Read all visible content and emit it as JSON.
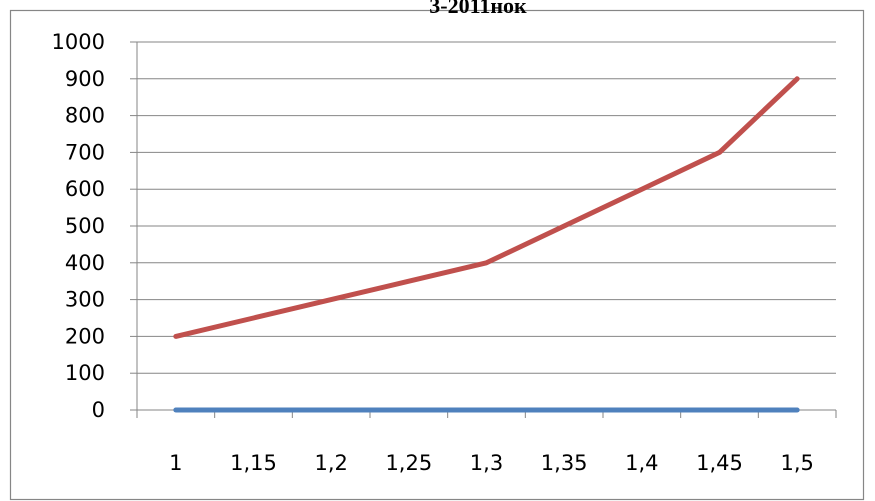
{
  "chart_data": {
    "type": "line",
    "title": "3-2011нок",
    "xlabel": "",
    "ylabel": "",
    "x": [
      "1",
      "1,15",
      "1,2",
      "1,25",
      "1,3",
      "1,35",
      "1,4",
      "1,45",
      "1,5"
    ],
    "ylim": [
      0,
      1000
    ],
    "yticks": [
      "0",
      "100",
      "200",
      "300",
      "400",
      "500",
      "600",
      "700",
      "800",
      "900",
      "1000"
    ],
    "grid": true,
    "legend": "none",
    "series": [
      {
        "color": "#4f81bd",
        "values": [
          0,
          0,
          0,
          0,
          0,
          0,
          0,
          0,
          0
        ]
      },
      {
        "color": "#c0504d",
        "values": [
          200,
          250,
          300,
          350,
          400,
          500,
          600,
          700,
          900
        ]
      }
    ]
  }
}
